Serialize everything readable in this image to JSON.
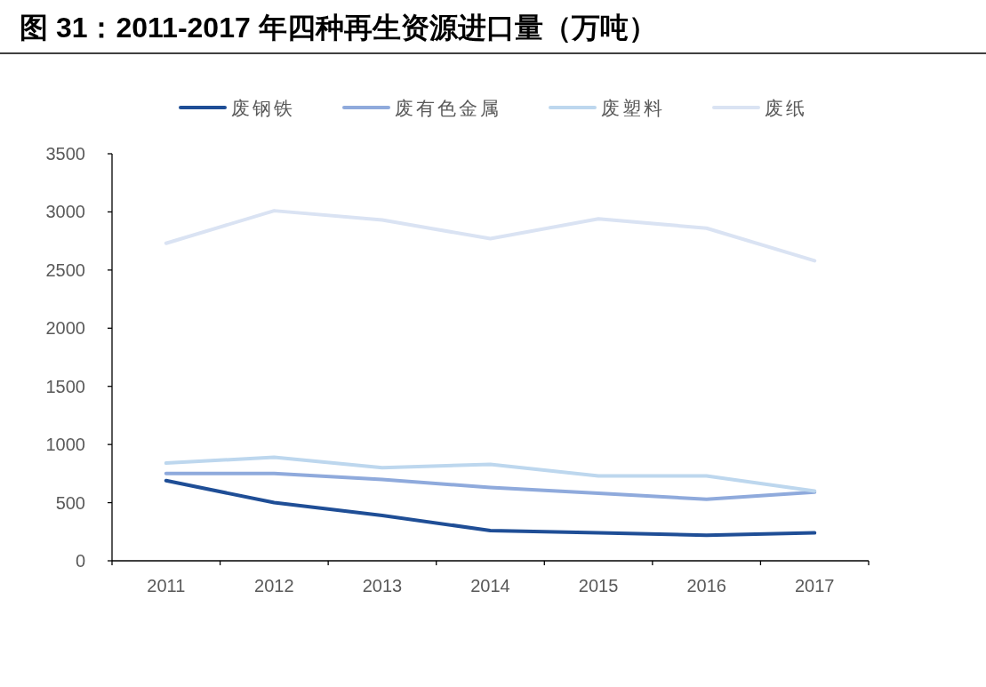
{
  "chart_data": {
    "type": "line",
    "title": "图 31：2011-2017 年四种再生资源进口量（万吨）",
    "categories": [
      "2011",
      "2012",
      "2013",
      "2014",
      "2015",
      "2016",
      "2017"
    ],
    "series": [
      {
        "name": "废钢铁",
        "color": "#1f4e96",
        "values": [
          690,
          500,
          390,
          260,
          240,
          220,
          240
        ]
      },
      {
        "name": "废有色金属",
        "color": "#8faadc",
        "values": [
          750,
          750,
          700,
          630,
          580,
          530,
          590
        ]
      },
      {
        "name": "废塑料",
        "color": "#bdd7ee",
        "values": [
          840,
          890,
          800,
          830,
          730,
          730,
          600
        ]
      },
      {
        "name": "废纸",
        "color": "#dae3f3",
        "values": [
          2730,
          3010,
          2930,
          2770,
          2940,
          2860,
          2580
        ]
      }
    ],
    "ylim": [
      0,
      3500
    ],
    "yticks": [
      0,
      500,
      1000,
      1500,
      2000,
      2500,
      3000,
      3500
    ],
    "legend": "top",
    "grid": false
  }
}
